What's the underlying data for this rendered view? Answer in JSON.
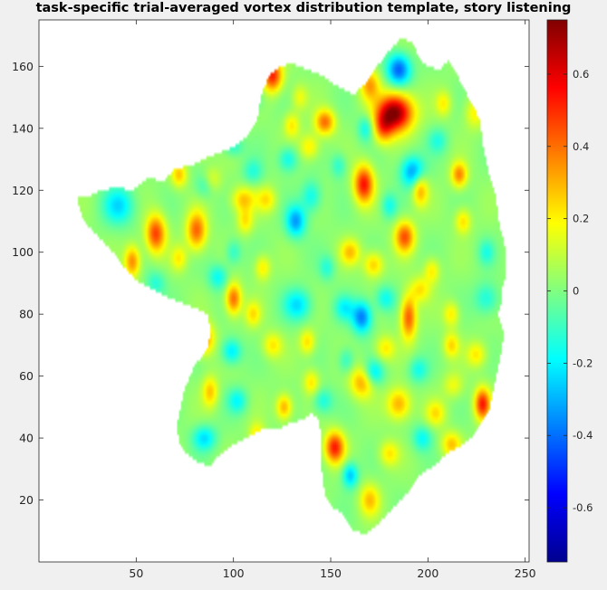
{
  "chart_data": {
    "type": "heatmap",
    "title": "task-specific trial-averaged vortex distribution template, story listening",
    "xlabel": "",
    "ylabel": "",
    "xlim": [
      0,
      252
    ],
    "ylim": [
      0,
      175
    ],
    "x_ticks": [
      50,
      100,
      150,
      200,
      250
    ],
    "y_ticks": [
      20,
      40,
      60,
      80,
      100,
      120,
      140,
      160
    ],
    "colormap": "jet",
    "clim": [
      -0.75,
      0.75
    ],
    "colorbar_ticks": [
      -0.6,
      -0.4,
      -0.2,
      0,
      0.2,
      0.4,
      0.6
    ],
    "grid": false,
    "region_outline": [
      [
        20,
        118
      ],
      [
        26,
        118
      ],
      [
        32,
        120
      ],
      [
        40,
        121
      ],
      [
        48,
        120
      ],
      [
        56,
        124
      ],
      [
        64,
        123
      ],
      [
        70,
        127
      ],
      [
        78,
        128
      ],
      [
        88,
        131
      ],
      [
        100,
        134
      ],
      [
        108,
        138
      ],
      [
        112,
        142
      ],
      [
        114,
        150
      ],
      [
        118,
        157
      ],
      [
        124,
        160
      ],
      [
        130,
        161
      ],
      [
        138,
        159
      ],
      [
        146,
        157
      ],
      [
        150,
        155
      ],
      [
        156,
        153
      ],
      [
        162,
        151
      ],
      [
        170,
        156
      ],
      [
        175,
        161
      ],
      [
        180,
        165
      ],
      [
        186,
        169
      ],
      [
        192,
        168
      ],
      [
        196,
        162
      ],
      [
        200,
        160
      ],
      [
        206,
        159
      ],
      [
        211,
        162
      ],
      [
        216,
        156
      ],
      [
        220,
        151
      ],
      [
        224,
        147
      ],
      [
        227,
        142
      ],
      [
        228,
        136
      ],
      [
        230,
        130
      ],
      [
        232,
        124
      ],
      [
        235,
        118
      ],
      [
        236,
        112
      ],
      [
        238,
        106
      ],
      [
        240,
        101
      ],
      [
        240,
        96
      ],
      [
        240,
        92
      ],
      [
        238,
        88
      ],
      [
        238,
        84
      ],
      [
        236,
        80
      ],
      [
        239,
        74
      ],
      [
        238,
        68
      ],
      [
        236,
        62
      ],
      [
        234,
        56
      ],
      [
        232,
        50
      ],
      [
        228,
        45
      ],
      [
        222,
        40
      ],
      [
        216,
        37
      ],
      [
        210,
        35
      ],
      [
        203,
        31
      ],
      [
        196,
        28
      ],
      [
        192,
        24
      ],
      [
        186,
        20
      ],
      [
        180,
        16
      ],
      [
        174,
        12
      ],
      [
        168,
        9
      ],
      [
        162,
        10
      ],
      [
        158,
        13
      ],
      [
        156,
        16
      ],
      [
        152,
        17
      ],
      [
        148,
        20
      ],
      [
        146,
        26
      ],
      [
        145,
        32
      ],
      [
        145,
        40
      ],
      [
        144,
        46
      ],
      [
        140,
        48
      ],
      [
        136,
        46
      ],
      [
        130,
        45
      ],
      [
        124,
        43
      ],
      [
        116,
        43
      ],
      [
        106,
        40
      ],
      [
        98,
        37
      ],
      [
        92,
        34
      ],
      [
        88,
        31
      ],
      [
        82,
        32
      ],
      [
        76,
        35
      ],
      [
        72,
        39
      ],
      [
        71,
        44
      ],
      [
        73,
        50
      ],
      [
        75,
        56
      ],
      [
        79,
        62
      ],
      [
        83,
        66
      ],
      [
        87,
        69
      ],
      [
        88,
        74
      ],
      [
        87,
        80
      ],
      [
        80,
        82
      ],
      [
        72,
        84
      ],
      [
        64,
        86
      ],
      [
        56,
        89
      ],
      [
        50,
        91
      ],
      [
        44,
        95
      ],
      [
        38,
        100
      ],
      [
        32,
        104
      ],
      [
        26,
        108
      ],
      [
        22,
        112
      ],
      [
        20,
        116
      ]
    ],
    "blobs": [
      [
        183,
        145,
        0.74,
        9,
        6
      ],
      [
        185,
        159,
        -0.45,
        6,
        5
      ],
      [
        192,
        126,
        -0.35,
        6,
        5
      ],
      [
        167,
        122,
        0.52,
        5,
        6
      ],
      [
        120,
        157,
        0.5,
        5,
        5
      ],
      [
        60,
        106,
        0.45,
        5,
        6
      ],
      [
        81,
        107,
        0.4,
        5,
        6
      ],
      [
        170,
        154,
        0.3,
        5,
        5
      ],
      [
        147,
        142,
        0.38,
        5,
        4
      ],
      [
        130,
        141,
        0.2,
        4,
        4
      ],
      [
        139,
        134,
        0.2,
        5,
        4
      ],
      [
        177,
        140,
        0.3,
        5,
        5
      ],
      [
        196,
        120,
        0.3,
        4,
        5
      ],
      [
        188,
        105,
        0.42,
        5,
        5
      ],
      [
        216,
        125,
        0.35,
        4,
        4
      ],
      [
        224,
        145,
        0.18,
        5,
        5
      ],
      [
        105,
        117,
        0.25,
        6,
        4
      ],
      [
        88,
        123,
        0.25,
        5,
        4
      ],
      [
        128,
        130,
        -0.2,
        5,
        4
      ],
      [
        132,
        110,
        -0.35,
        5,
        5
      ],
      [
        117,
        117,
        0.2,
        5,
        4
      ],
      [
        140,
        118,
        -0.2,
        5,
        5
      ],
      [
        106,
        110,
        0.2,
        4,
        4
      ],
      [
        110,
        126,
        -0.15,
        5,
        4
      ],
      [
        72,
        125,
        0.25,
        4,
        4
      ],
      [
        86,
        122,
        -0.25,
        5,
        4
      ],
      [
        82,
        133,
        0.2,
        5,
        3
      ],
      [
        41,
        115,
        -0.25,
        8,
        6
      ],
      [
        48,
        97,
        0.35,
        4,
        5
      ],
      [
        100,
        100,
        -0.15,
        4,
        4
      ],
      [
        160,
        100,
        0.25,
        5,
        4
      ],
      [
        172,
        96,
        0.25,
        5,
        4
      ],
      [
        196,
        88,
        0.2,
        5,
        4
      ],
      [
        202,
        94,
        0.2,
        4,
        4
      ],
      [
        178,
        85,
        -0.2,
        5,
        4
      ],
      [
        133,
        83,
        -0.25,
        7,
        5
      ],
      [
        100,
        85,
        0.4,
        4,
        5
      ],
      [
        92,
        92,
        -0.2,
        5,
        4
      ],
      [
        110,
        80,
        0.2,
        4,
        4
      ],
      [
        157,
        82,
        -0.2,
        5,
        4
      ],
      [
        190,
        79,
        0.42,
        4,
        7
      ],
      [
        212,
        80,
        0.2,
        4,
        4
      ],
      [
        230,
        85,
        -0.18,
        6,
        5
      ],
      [
        166,
        79,
        -0.4,
        5,
        5
      ],
      [
        85,
        72,
        0.35,
        5,
        5
      ],
      [
        99,
        68,
        -0.25,
        5,
        4
      ],
      [
        120,
        70,
        0.2,
        5,
        4
      ],
      [
        138,
        71,
        0.22,
        4,
        4
      ],
      [
        178,
        69,
        0.2,
        5,
        4
      ],
      [
        195,
        62,
        -0.18,
        5,
        4
      ],
      [
        212,
        70,
        0.22,
        4,
        4
      ],
      [
        225,
        67,
        0.2,
        5,
        4
      ],
      [
        88,
        55,
        0.25,
        4,
        5
      ],
      [
        102,
        52,
        -0.2,
        5,
        4
      ],
      [
        126,
        50,
        0.3,
        4,
        4
      ],
      [
        146,
        52,
        -0.18,
        5,
        4
      ],
      [
        166,
        58,
        0.3,
        6,
        5
      ],
      [
        172,
        61,
        -0.25,
        5,
        4
      ],
      [
        185,
        51,
        0.3,
        6,
        5
      ],
      [
        204,
        48,
        0.2,
        5,
        4
      ],
      [
        213,
        57,
        0.15,
        5,
        4
      ],
      [
        228,
        51,
        0.5,
        4,
        5
      ],
      [
        85,
        40,
        -0.25,
        6,
        4
      ],
      [
        112,
        41,
        0.2,
        4,
        4
      ],
      [
        152,
        37,
        0.5,
        5,
        5
      ],
      [
        160,
        28,
        -0.3,
        4,
        4
      ],
      [
        170,
        20,
        0.25,
        5,
        5
      ],
      [
        180,
        35,
        0.2,
        5,
        4
      ],
      [
        197,
        40,
        -0.2,
        5,
        4
      ],
      [
        212,
        38,
        0.25,
        5,
        4
      ],
      [
        195,
        18,
        0.18,
        4,
        4
      ],
      [
        110,
        150,
        -0.15,
        5,
        4
      ],
      [
        94,
        143,
        0.2,
        5,
        4
      ],
      [
        68,
        145,
        -0.15,
        5,
        4
      ],
      [
        134,
        150,
        0.15,
        4,
        4
      ],
      [
        100,
        134,
        -0.15,
        5,
        3
      ],
      [
        154,
        128,
        -0.15,
        4,
        4
      ],
      [
        205,
        136,
        -0.15,
        5,
        4
      ],
      [
        208,
        148,
        0.18,
        4,
        4
      ],
      [
        218,
        110,
        0.22,
        4,
        4
      ],
      [
        230,
        100,
        -0.15,
        4,
        4
      ],
      [
        60,
        90,
        -0.15,
        5,
        4
      ],
      [
        72,
        98,
        0.18,
        4,
        4
      ],
      [
        115,
        95,
        0.2,
        4,
        4
      ],
      [
        148,
        95,
        -0.15,
        4,
        4
      ],
      [
        180,
        115,
        -0.18,
        4,
        4
      ],
      [
        168,
        140,
        -0.2,
        4,
        4
      ],
      [
        140,
        58,
        0.2,
        4,
        4
      ],
      [
        158,
        65,
        -0.15,
        4,
        4
      ]
    ]
  }
}
